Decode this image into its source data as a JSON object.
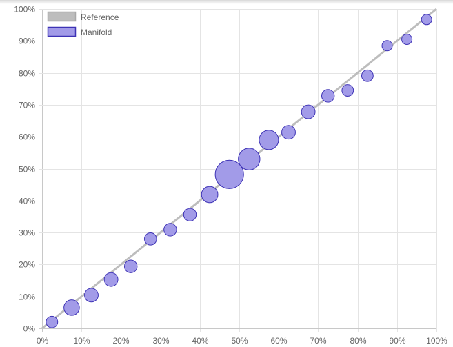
{
  "chart_data": {
    "type": "scatter",
    "xlim": [
      0,
      100
    ],
    "ylim": [
      0,
      100
    ],
    "x_ticks": [
      "0%",
      "10%",
      "20%",
      "30%",
      "40%",
      "50%",
      "60%",
      "70%",
      "80%",
      "90%",
      "100%"
    ],
    "y_ticks": [
      "0%",
      "10%",
      "20%",
      "30%",
      "40%",
      "50%",
      "60%",
      "70%",
      "80%",
      "90%",
      "100%"
    ],
    "grid": true,
    "legend_position": "top-left",
    "series": [
      {
        "name": "Reference",
        "kind": "line",
        "color": "#bdbdbd",
        "points": [
          [
            0,
            0
          ],
          [
            100,
            100
          ]
        ]
      },
      {
        "name": "Manifold",
        "kind": "bubble",
        "fill": "#a29be8",
        "stroke": "#3d32b5",
        "points": [
          {
            "x": 2.5,
            "y": 2.0,
            "weight": 1.0
          },
          {
            "x": 7.5,
            "y": 6.5,
            "weight": 1.8
          },
          {
            "x": 12.5,
            "y": 10.4,
            "weight": 1.4
          },
          {
            "x": 17.5,
            "y": 15.3,
            "weight": 1.4
          },
          {
            "x": 22.5,
            "y": 19.4,
            "weight": 1.2
          },
          {
            "x": 27.5,
            "y": 28.0,
            "weight": 1.1
          },
          {
            "x": 32.5,
            "y": 30.9,
            "weight": 1.2
          },
          {
            "x": 37.5,
            "y": 35.6,
            "weight": 1.2
          },
          {
            "x": 42.5,
            "y": 41.9,
            "weight": 2.0
          },
          {
            "x": 47.5,
            "y": 48.2,
            "weight": 6.0
          },
          {
            "x": 52.5,
            "y": 53.0,
            "weight": 3.5
          },
          {
            "x": 57.5,
            "y": 59.0,
            "weight": 2.8
          },
          {
            "x": 62.5,
            "y": 61.4,
            "weight": 1.4
          },
          {
            "x": 67.5,
            "y": 67.8,
            "weight": 1.4
          },
          {
            "x": 72.5,
            "y": 72.8,
            "weight": 1.2
          },
          {
            "x": 77.5,
            "y": 74.5,
            "weight": 1.0
          },
          {
            "x": 82.5,
            "y": 79.1,
            "weight": 1.0
          },
          {
            "x": 87.5,
            "y": 88.5,
            "weight": 0.8
          },
          {
            "x": 92.5,
            "y": 90.5,
            "weight": 0.8
          },
          {
            "x": 97.5,
            "y": 96.7,
            "weight": 0.8
          }
        ]
      }
    ]
  }
}
